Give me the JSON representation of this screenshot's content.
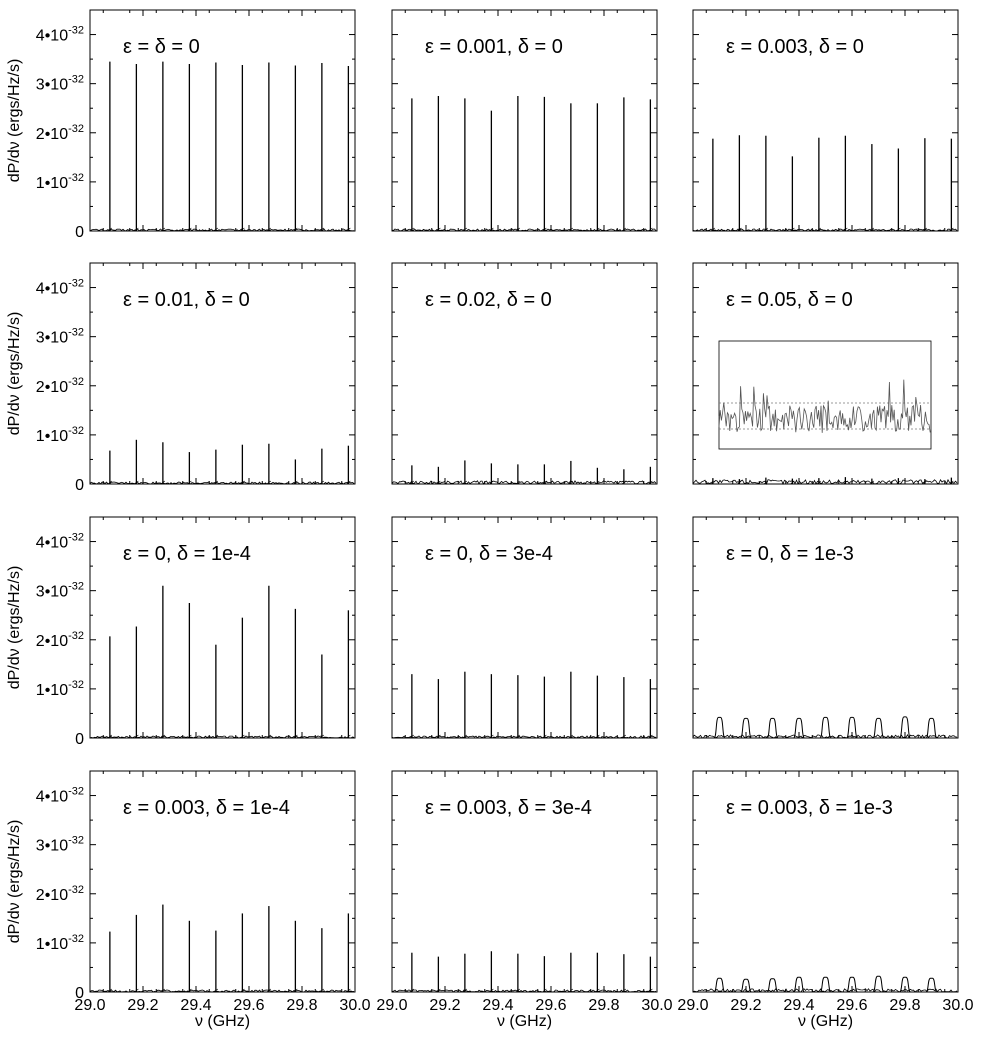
{
  "figure": {
    "ylabel": "dP/dν (ergs/Hz/s)",
    "xlabel": "ν (GHz)"
  },
  "axes": {
    "xlim": [
      29.0,
      30.0
    ],
    "ylim": [
      0,
      4.5e-32
    ],
    "xticks": [
      29.0,
      29.2,
      29.4,
      29.6,
      29.8,
      30.0
    ],
    "xtick_labels": [
      "29.0",
      "29.2",
      "29.4",
      "29.6",
      "29.8",
      "30.0"
    ],
    "yticks": [
      {
        "value": 0,
        "base": "0",
        "exp": ""
      },
      {
        "value": 1e-32,
        "base": "1•10",
        "exp": "-32"
      },
      {
        "value": 2e-32,
        "base": "2•10",
        "exp": "-32"
      },
      {
        "value": 3e-32,
        "base": "3•10",
        "exp": "-32"
      },
      {
        "value": 4e-32,
        "base": "4•10",
        "exp": "-32"
      }
    ]
  },
  "chart_data": [
    {
      "type": "line",
      "title": "ε = δ = 0",
      "x": [
        29.075,
        29.175,
        29.275,
        29.375,
        29.475,
        29.575,
        29.675,
        29.775,
        29.875,
        29.975
      ],
      "values": [
        3.45e-32,
        3.4e-32,
        3.45e-32,
        3.4e-32,
        3.43e-32,
        3.38e-32,
        3.43e-32,
        3.37e-32,
        3.42e-32,
        3.36e-32
      ],
      "xlabel": "",
      "ylabel": "dP/dν (ergs/Hz/s)",
      "xlim": [
        29.0,
        30.0
      ],
      "ylim": [
        0,
        4.5e-32
      ]
    },
    {
      "type": "line",
      "title": "ε = 0.001, δ = 0",
      "x": [
        29.075,
        29.175,
        29.275,
        29.375,
        29.475,
        29.575,
        29.675,
        29.775,
        29.875,
        29.975
      ],
      "values": [
        2.7e-32,
        2.75e-32,
        2.7e-32,
        2.45e-32,
        2.75e-32,
        2.73e-32,
        2.6e-32,
        2.6e-32,
        2.72e-32,
        2.68e-32
      ],
      "xlabel": "",
      "ylabel": "",
      "xlim": [
        29.0,
        30.0
      ],
      "ylim": [
        0,
        4.5e-32
      ]
    },
    {
      "type": "line",
      "title": "ε = 0.003, δ = 0",
      "x": [
        29.075,
        29.175,
        29.275,
        29.375,
        29.475,
        29.575,
        29.675,
        29.775,
        29.875,
        29.975
      ],
      "values": [
        1.88e-32,
        1.95e-32,
        1.94e-32,
        1.52e-32,
        1.9e-32,
        1.94e-32,
        1.77e-32,
        1.68e-32,
        1.89e-32,
        1.88e-32
      ],
      "xlabel": "",
      "ylabel": "",
      "xlim": [
        29.0,
        30.0
      ],
      "ylim": [
        0,
        4.5e-32
      ]
    },
    {
      "type": "line",
      "title": "ε = 0.01, δ = 0",
      "x": [
        29.075,
        29.175,
        29.275,
        29.375,
        29.475,
        29.575,
        29.675,
        29.775,
        29.875,
        29.975
      ],
      "values": [
        6.8e-33,
        9e-33,
        8.5e-33,
        6.5e-33,
        7e-33,
        8e-33,
        8.2e-33,
        5e-33,
        7.2e-33,
        7.8e-33
      ],
      "xlabel": "",
      "ylabel": "dP/dν (ergs/Hz/s)",
      "xlim": [
        29.0,
        30.0
      ],
      "ylim": [
        0,
        4.5e-32
      ]
    },
    {
      "type": "line",
      "title": "ε = 0.02, δ = 0",
      "x": [
        29.075,
        29.175,
        29.275,
        29.375,
        29.475,
        29.575,
        29.675,
        29.775,
        29.875,
        29.975
      ],
      "values": [
        3.8e-33,
        3.5e-33,
        4.8e-33,
        4.2e-33,
        4e-33,
        4e-33,
        4.7e-33,
        3.3e-33,
        3e-33,
        3.5e-33
      ],
      "xlabel": "",
      "ylabel": "",
      "xlim": [
        29.0,
        30.0
      ],
      "ylim": [
        0,
        4.5e-32
      ]
    },
    {
      "type": "line",
      "title": "ε = 0.05, δ = 0",
      "x": [
        29.075,
        29.175,
        29.275,
        29.375,
        29.475,
        29.575,
        29.675,
        29.775,
        29.875,
        29.975
      ],
      "values": [
        1.2e-33,
        1e-33,
        1.3e-33,
        1.1e-33,
        1.2e-33,
        1.4e-33,
        1.1e-33,
        1.2e-33,
        1e-33,
        1.3e-33
      ],
      "inset": true,
      "xlabel": "",
      "ylabel": "",
      "xlim": [
        29.0,
        30.0
      ],
      "ylim": [
        0,
        4.5e-32
      ]
    },
    {
      "type": "line",
      "title": "ε = 0, δ = 1e-4",
      "x": [
        29.075,
        29.175,
        29.275,
        29.375,
        29.475,
        29.575,
        29.675,
        29.775,
        29.875,
        29.975
      ],
      "values": [
        2.07e-32,
        2.27e-32,
        3.1e-32,
        2.75e-32,
        1.9e-32,
        2.45e-32,
        3.1e-32,
        2.63e-32,
        1.7e-32,
        2.6e-32
      ],
      "xlabel": "",
      "ylabel": "dP/dν (ergs/Hz/s)",
      "xlim": [
        29.0,
        30.0
      ],
      "ylim": [
        0,
        4.5e-32
      ]
    },
    {
      "type": "line",
      "title": "ε = 0, δ = 3e-4",
      "x": [
        29.075,
        29.175,
        29.275,
        29.375,
        29.475,
        29.575,
        29.675,
        29.775,
        29.875,
        29.975
      ],
      "values": [
        1.3e-32,
        1.2e-32,
        1.35e-32,
        1.3e-32,
        1.28e-32,
        1.25e-32,
        1.35e-32,
        1.27e-32,
        1.24e-32,
        1.2e-32
      ],
      "xlabel": "",
      "ylabel": "",
      "xlim": [
        29.0,
        30.0
      ],
      "ylim": [
        0,
        4.5e-32
      ]
    },
    {
      "type": "line",
      "title": "ε = 0, δ = 1e-3",
      "x": [
        29.1,
        29.2,
        29.3,
        29.4,
        29.5,
        29.6,
        29.7,
        29.8,
        29.9
      ],
      "values": [
        4.2e-33,
        4e-33,
        4e-33,
        4e-33,
        4.2e-33,
        4.2e-33,
        4e-33,
        4.3e-33,
        4e-33
      ],
      "xlabel": "",
      "ylabel": "",
      "xlim": [
        29.0,
        30.0
      ],
      "ylim": [
        0,
        4.5e-32
      ]
    },
    {
      "type": "line",
      "title": "ε = 0.003, δ = 1e-4",
      "x": [
        29.075,
        29.175,
        29.275,
        29.375,
        29.475,
        29.575,
        29.675,
        29.775,
        29.875,
        29.975
      ],
      "values": [
        1.23e-32,
        1.57e-32,
        1.78e-32,
        1.45e-32,
        1.25e-32,
        1.6e-32,
        1.75e-32,
        1.45e-32,
        1.3e-32,
        1.6e-32
      ],
      "xlabel": "ν (GHz)",
      "ylabel": "dP/dν (ergs/Hz/s)",
      "xlim": [
        29.0,
        30.0
      ],
      "ylim": [
        0,
        4.5e-32
      ]
    },
    {
      "type": "line",
      "title": "ε = 0.003, δ = 3e-4",
      "x": [
        29.075,
        29.175,
        29.275,
        29.375,
        29.475,
        29.575,
        29.675,
        29.775,
        29.875,
        29.975
      ],
      "values": [
        8e-33,
        7.2e-33,
        7.8e-33,
        8.3e-33,
        7.8e-33,
        7.3e-33,
        8e-33,
        8e-33,
        7.7e-33,
        7.2e-33
      ],
      "xlabel": "ν (GHz)",
      "ylabel": "",
      "xlim": [
        29.0,
        30.0
      ],
      "ylim": [
        0,
        4.5e-32
      ]
    },
    {
      "type": "line",
      "title": "ε = 0.003, δ = 1e-3",
      "x": [
        29.1,
        29.2,
        29.3,
        29.4,
        29.5,
        29.6,
        29.7,
        29.8,
        29.9
      ],
      "values": [
        2.8e-33,
        2.6e-33,
        2.7e-33,
        3e-33,
        3e-33,
        3e-33,
        3.2e-33,
        3e-33,
        2.8e-33
      ],
      "xlabel": "ν (GHz)",
      "ylabel": "",
      "xlim": [
        29.0,
        30.0
      ],
      "ylim": [
        0,
        4.5e-32
      ]
    }
  ]
}
